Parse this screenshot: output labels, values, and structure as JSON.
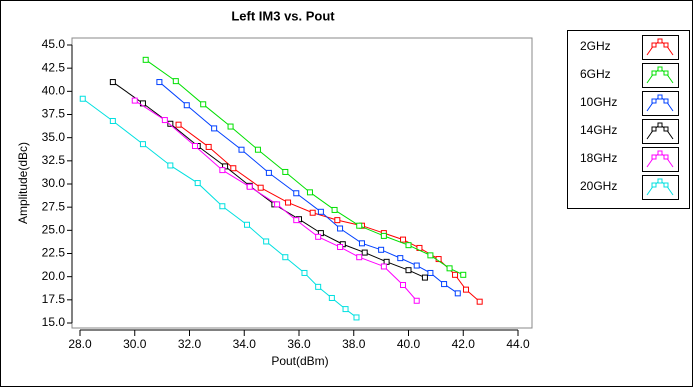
{
  "chart_data": {
    "type": "line",
    "title": "Left IM3 vs. Pout",
    "xlabel": "Pout(dBm)",
    "ylabel": "Amplitude(dBc)",
    "xlim": [
      28,
      44
    ],
    "ylim": [
      15,
      45
    ],
    "xticks": [
      {
        "value": 28,
        "label": "28.0"
      },
      {
        "value": 30,
        "label": "30.0"
      },
      {
        "value": 32,
        "label": "32.0"
      },
      {
        "value": 34,
        "label": "34.0"
      },
      {
        "value": 36,
        "label": "36.0"
      },
      {
        "value": 38,
        "label": "38.0"
      },
      {
        "value": 40,
        "label": "40.0"
      },
      {
        "value": 42,
        "label": "42.0"
      },
      {
        "value": 44,
        "label": "44.0"
      }
    ],
    "yticks": [
      {
        "value": 15,
        "label": "15.0"
      },
      {
        "value": 17.5,
        "label": "17.5"
      },
      {
        "value": 20,
        "label": "20.0"
      },
      {
        "value": 22.5,
        "label": "22.5"
      },
      {
        "value": 25,
        "label": "25.0"
      },
      {
        "value": 27.5,
        "label": "27.5"
      },
      {
        "value": 30,
        "label": "30.0"
      },
      {
        "value": 32.5,
        "label": "32.5"
      },
      {
        "value": 35,
        "label": "35.0"
      },
      {
        "value": 37.5,
        "label": "37.5"
      },
      {
        "value": 40,
        "label": "40.0"
      },
      {
        "value": 42.5,
        "label": "42.5"
      },
      {
        "value": 45,
        "label": "45.0"
      }
    ],
    "series": [
      {
        "name": "2GHz",
        "color": "#ff0000",
        "x": [
          31.6,
          32.7,
          33.6,
          34.6,
          35.6,
          36.5,
          37.4,
          38.3,
          39.1,
          39.8,
          40.4,
          41.1,
          41.7,
          42.1,
          42.6
        ],
        "values": [
          36.4,
          34.0,
          31.7,
          29.6,
          28.0,
          26.9,
          26.1,
          25.5,
          24.7,
          24.0,
          23.1,
          21.9,
          20.2,
          18.6,
          17.3
        ]
      },
      {
        "name": "6GHz",
        "color": "#00e000",
        "x": [
          30.4,
          31.5,
          32.5,
          33.5,
          34.5,
          35.5,
          36.4,
          37.3,
          38.2,
          39.1,
          40.0,
          40.8,
          41.5,
          42.0
        ],
        "values": [
          43.4,
          41.1,
          38.6,
          36.2,
          33.7,
          31.3,
          29.1,
          27.2,
          25.5,
          24.4,
          23.4,
          22.3,
          20.9,
          20.2
        ]
      },
      {
        "name": "10GHz",
        "color": "#0040ff",
        "x": [
          30.9,
          31.9,
          32.9,
          33.9,
          34.9,
          35.9,
          36.8,
          37.5,
          38.3,
          39.0,
          39.7,
          40.3,
          40.8,
          41.3,
          41.8
        ],
        "values": [
          41.0,
          38.5,
          36.0,
          33.7,
          31.2,
          29.0,
          27.0,
          25.2,
          23.6,
          22.9,
          22.0,
          21.2,
          20.4,
          19.2,
          18.2
        ]
      },
      {
        "name": "14GHz",
        "color": "#000000",
        "x": [
          29.2,
          30.3,
          31.3,
          32.3,
          33.3,
          34.2,
          35.1,
          36.0,
          36.8,
          37.6,
          38.4,
          39.2,
          40.0,
          40.6
        ],
        "values": [
          41.0,
          38.7,
          36.5,
          34.1,
          31.9,
          29.8,
          27.8,
          26.2,
          24.7,
          23.5,
          22.6,
          21.6,
          20.7,
          19.9
        ]
      },
      {
        "name": "18GHz",
        "color": "#ff00ff",
        "x": [
          30.0,
          31.1,
          32.2,
          33.2,
          34.2,
          35.2,
          35.9,
          36.7,
          37.5,
          38.2,
          39.1,
          39.8,
          40.3
        ],
        "values": [
          39.0,
          36.9,
          34.1,
          31.5,
          29.7,
          27.8,
          26.1,
          24.3,
          23.2,
          22.1,
          21.1,
          19.1,
          17.4
        ]
      },
      {
        "name": "20GHz",
        "color": "#00e0e0",
        "x": [
          28.1,
          29.2,
          30.3,
          31.3,
          32.3,
          33.2,
          34.1,
          34.8,
          35.5,
          36.2,
          36.7,
          37.2,
          37.7,
          38.1
        ],
        "values": [
          39.2,
          36.8,
          34.3,
          32.0,
          30.1,
          27.6,
          25.6,
          23.8,
          22.1,
          20.4,
          18.9,
          17.7,
          16.5,
          15.6
        ]
      }
    ]
  }
}
